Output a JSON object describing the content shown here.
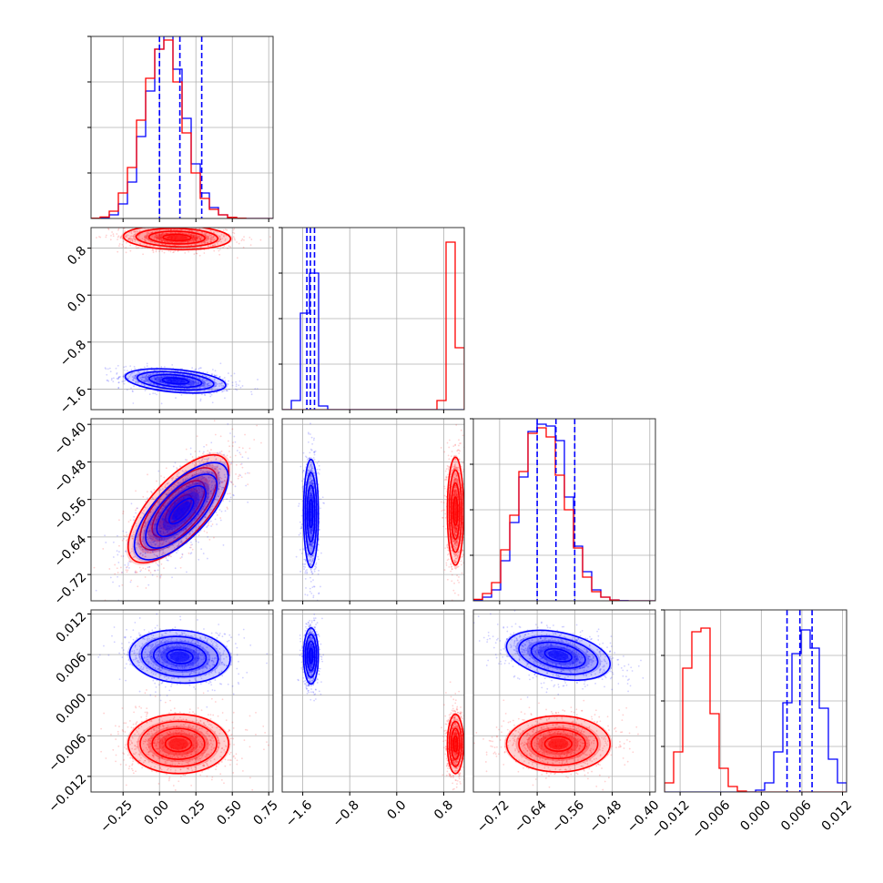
{
  "chart_data": {
    "type": "corner-plot",
    "parameters": 4,
    "series": [
      {
        "color": "#0000ff"
      },
      {
        "color": "#ff0000"
      }
    ],
    "grid": true,
    "params": [
      {
        "range": [
          -0.47,
          0.78
        ],
        "ticks": [
          -0.25,
          0.0,
          0.25,
          0.5,
          0.75
        ],
        "tick_labels": [
          "−0.25",
          "0.00",
          "0.25",
          "0.50",
          "0.75"
        ]
      },
      {
        "range": [
          -1.95,
          1.15
        ],
        "ticks": [
          -1.6,
          -0.8,
          0.0,
          0.8
        ],
        "tick_labels": [
          "−1.6",
          "−0.8",
          "0.0",
          "0.8"
        ]
      },
      {
        "range": [
          -0.776,
          -0.388
        ],
        "ticks": [
          -0.72,
          -0.64,
          -0.56,
          -0.48,
          -0.4
        ],
        "tick_labels": [
          "−0.72",
          "−0.64",
          "−0.56",
          "−0.48",
          "−0.40"
        ]
      },
      {
        "range": [
          -0.0143,
          0.0126
        ],
        "ticks": [
          -0.012,
          -0.006,
          0.0,
          0.006,
          0.012
        ],
        "tick_labels": [
          "−0.012",
          "−0.006",
          "0.000",
          "0.006",
          "0.012"
        ]
      }
    ],
    "quantile_lines": [
      [
        0.0,
        0.14,
        0.29
      ],
      [
        -1.53,
        -1.47,
        -1.4
      ],
      [
        -0.64,
        -0.6,
        -0.56
      ],
      [
        0.0038,
        0.0057,
        0.0075
      ]
    ],
    "histograms": [
      {
        "bins": [
          -0.47,
          0.78,
          20
        ],
        "blue": [
          0.001,
          0.004,
          0.02,
          0.08,
          0.2,
          0.45,
          0.7,
          0.93,
          1.0,
          0.82,
          0.55,
          0.3,
          0.14,
          0.06,
          0.02,
          0.005,
          0.002,
          0,
          0,
          0
        ],
        "red": [
          0.002,
          0.008,
          0.04,
          0.14,
          0.28,
          0.54,
          0.77,
          0.93,
          0.98,
          0.75,
          0.47,
          0.25,
          0.11,
          0.05,
          0.02,
          0.006,
          0.002,
          0,
          0,
          0
        ]
      },
      {
        "bins": [
          -1.95,
          1.15,
          20
        ],
        "blue": [
          0.0,
          0.05,
          0.53,
          0.75,
          0.02,
          0,
          0,
          0,
          0,
          0,
          0,
          0,
          0,
          0,
          0,
          0,
          0,
          0,
          0,
          0
        ],
        "red": [
          0,
          0,
          0,
          0,
          0,
          0,
          0,
          0,
          0,
          0,
          0,
          0,
          0,
          0,
          0,
          0,
          0,
          0.05,
          0.92,
          0.34
        ]
      },
      {
        "bins": [
          -0.776,
          -0.388,
          20
        ],
        "blue": [
          0.004,
          0.02,
          0.06,
          0.22,
          0.43,
          0.68,
          0.93,
          0.97,
          0.96,
          0.88,
          0.57,
          0.3,
          0.16,
          0.06,
          0.02,
          0.005,
          0.001,
          0,
          0,
          0
        ],
        "red": [
          0.008,
          0.04,
          0.1,
          0.28,
          0.47,
          0.71,
          0.92,
          0.95,
          0.9,
          0.69,
          0.5,
          0.29,
          0.13,
          0.05,
          0.02,
          0.004,
          0,
          0,
          0,
          0
        ]
      },
      {
        "bins": [
          -0.0143,
          0.0126,
          20
        ],
        "blue": [
          0,
          0,
          0,
          0,
          0,
          0,
          0,
          0,
          0,
          0,
          0.01,
          0.05,
          0.22,
          0.49,
          0.76,
          0.89,
          0.79,
          0.46,
          0.18,
          0.05
        ],
        "red": [
          0.05,
          0.22,
          0.68,
          0.88,
          0.9,
          0.43,
          0.13,
          0.03,
          0.005,
          0,
          0,
          0,
          0,
          0,
          0,
          0,
          0,
          0,
          0,
          0
        ]
      }
    ],
    "blobs": [
      {
        "pair": [
          1,
          0
        ],
        "series": [
          {
            "color": "#0000ff",
            "mean": [
              0.11,
              -1.46
            ],
            "sd": [
              0.15,
              0.09
            ],
            "rho": -0.35
          },
          {
            "color": "#ff0000",
            "mean": [
              0.12,
              0.98
            ],
            "sd": [
              0.16,
              0.09
            ],
            "rho": -0.1
          }
        ]
      },
      {
        "pair": [
          2,
          0
        ],
        "series": [
          {
            "color": "#ff0000",
            "mean": [
              0.13,
              -0.58
            ],
            "sd": [
              0.15,
              0.05
            ],
            "rho": 0.7
          },
          {
            "color": "#0000ff",
            "mean": [
              0.15,
              -0.585
            ],
            "sd": [
              0.14,
              0.045
            ],
            "rho": 0.7
          }
        ]
      },
      {
        "pair": [
          2,
          1
        ],
        "series": [
          {
            "color": "#0000ff",
            "mean": [
              -1.46,
              -0.59
            ],
            "sd": [
              0.055,
              0.05
            ],
            "rho": 0.0
          },
          {
            "color": "#ff0000",
            "mean": [
              1.0,
              -0.585
            ],
            "sd": [
              0.06,
              0.05
            ],
            "rho": 0.0
          }
        ]
      },
      {
        "pair": [
          3,
          0
        ],
        "series": [
          {
            "color": "#0000ff",
            "mean": [
              0.14,
              0.0057
            ],
            "sd": [
              0.15,
              0.0017
            ],
            "rho": -0.1
          },
          {
            "color": "#ff0000",
            "mean": [
              0.13,
              -0.0072
            ],
            "sd": [
              0.15,
              0.0019
            ],
            "rho": 0.0
          }
        ]
      },
      {
        "pair": [
          3,
          1
        ],
        "series": [
          {
            "color": "#0000ff",
            "mean": [
              -1.46,
              0.0058
            ],
            "sd": [
              0.055,
              0.0018
            ],
            "rho": 0.0
          },
          {
            "color": "#ff0000",
            "mean": [
              1.0,
              -0.0072
            ],
            "sd": [
              0.06,
              0.0019
            ],
            "rho": 0.0
          }
        ]
      },
      {
        "pair": [
          3,
          2
        ],
        "series": [
          {
            "color": "#0000ff",
            "mean": [
              -0.595,
              0.0059
            ],
            "sd": [
              0.048,
              0.0016
            ],
            "rho": -0.35
          },
          {
            "color": "#ff0000",
            "mean": [
              -0.595,
              -0.0072
            ],
            "sd": [
              0.048,
              0.0018
            ],
            "rho": 0.0
          }
        ]
      }
    ]
  }
}
